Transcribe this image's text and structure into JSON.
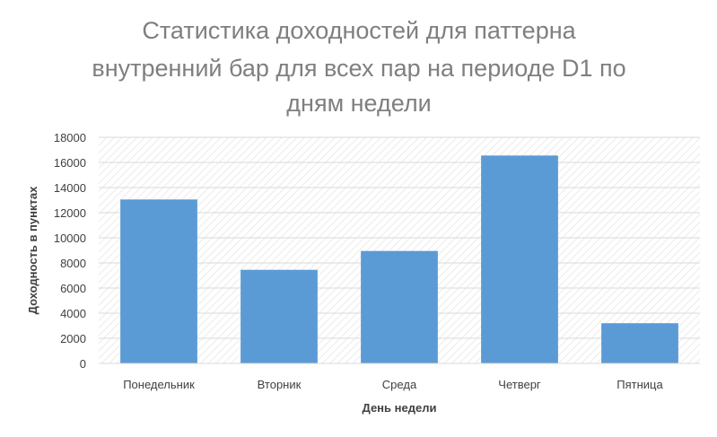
{
  "chart_data": {
    "type": "bar",
    "title_lines": [
      "Статистика доходностей для паттерна",
      "внутренний бар для всех пар на периоде D1 по",
      "дням недели"
    ],
    "xlabel": "День недели",
    "ylabel": "Доходность в пунктах",
    "categories": [
      "Понедельник",
      "Вторник",
      "Среда",
      "Четверг",
      "Пятница"
    ],
    "values": [
      13050,
      7450,
      8950,
      16550,
      3200
    ],
    "ylim": [
      0,
      18000
    ],
    "yticks": [
      0,
      2000,
      4000,
      6000,
      8000,
      10000,
      12000,
      14000,
      16000,
      18000
    ],
    "grid": true,
    "legend": "none",
    "colors": {
      "bar": "#5b9bd5",
      "title": "#7f7f7f",
      "text": "#404040",
      "grid": "#d9d9d9"
    }
  }
}
